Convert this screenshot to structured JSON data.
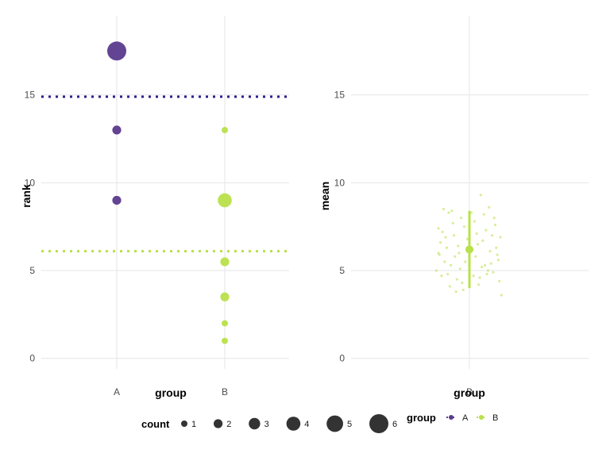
{
  "chart_data": [
    {
      "type": "scatter",
      "panel": "left",
      "xlabel": "group",
      "ylabel": "rank",
      "categories": [
        "A",
        "B"
      ],
      "ylim": [
        -0.6,
        19.5
      ],
      "yticks": [
        0,
        5,
        10,
        15
      ],
      "grid": true,
      "series": [
        {
          "name": "A",
          "color": "#5b3a8c",
          "points": [
            {
              "x": "A",
              "y": 17.5,
              "count": 6
            },
            {
              "x": "A",
              "y": 13,
              "count": 2
            },
            {
              "x": "A",
              "y": 9,
              "count": 2
            }
          ],
          "mean_line": 14.9
        },
        {
          "name": "B",
          "color": "#b8e04a",
          "points": [
            {
              "x": "B",
              "y": 13,
              "count": 1
            },
            {
              "x": "B",
              "y": 9,
              "count": 4
            },
            {
              "x": "B",
              "y": 5.5,
              "count": 2
            },
            {
              "x": "B",
              "y": 3.5,
              "count": 2
            },
            {
              "x": "B",
              "y": 2,
              "count": 1
            },
            {
              "x": "B",
              "y": 1,
              "count": 1
            }
          ],
          "mean_line": 6.1
        }
      ]
    },
    {
      "type": "scatter",
      "panel": "right",
      "xlabel": "group",
      "ylabel": "mean",
      "categories": [
        "B"
      ],
      "ylim": [
        -0.6,
        19.5
      ],
      "yticks": [
        0,
        5,
        10,
        15
      ],
      "grid": true,
      "series": [
        {
          "name": "B",
          "color": "#b8e04a",
          "mean": 6.2,
          "interval": [
            4.0,
            8.4
          ],
          "jitter_points": [
            [
              -0.3,
              7.4
            ],
            [
              -0.25,
              8.5
            ],
            [
              -0.2,
              8.3
            ],
            [
              -0.28,
              6.6
            ],
            [
              -0.22,
              6.3
            ],
            [
              -0.15,
              7.0
            ],
            [
              -0.32,
              5.0
            ],
            [
              -0.27,
              4.7
            ],
            [
              -0.18,
              5.3
            ],
            [
              -0.12,
              4.5
            ],
            [
              -0.1,
              6.0
            ],
            [
              -0.05,
              7.5
            ],
            [
              -0.08,
              8.0
            ],
            [
              -0.14,
              5.8
            ],
            [
              -0.24,
              5.5
            ],
            [
              -0.19,
              4.1
            ],
            [
              -0.06,
              3.9
            ],
            [
              -0.02,
              6.8
            ],
            [
              -0.3,
              6.0
            ],
            [
              -0.16,
              7.7
            ],
            [
              -0.09,
              5.1
            ],
            [
              -0.26,
              7.2
            ],
            [
              -0.21,
              4.8
            ],
            [
              -0.11,
              6.4
            ],
            [
              -0.04,
              5.5
            ],
            [
              -0.13,
              3.8
            ],
            [
              -0.29,
              5.9
            ],
            [
              -0.23,
              6.9
            ],
            [
              -0.07,
              4.3
            ],
            [
              -0.17,
              8.4
            ],
            [
              0.05,
              7.8
            ],
            [
              0.08,
              6.5
            ],
            [
              0.12,
              5.2
            ],
            [
              0.16,
              7.3
            ],
            [
              0.2,
              6.1
            ],
            [
              0.24,
              8.0
            ],
            [
              0.28,
              5.6
            ],
            [
              0.3,
              6.9
            ],
            [
              0.1,
              4.6
            ],
            [
              0.14,
              8.2
            ],
            [
              0.18,
              5.0
            ],
            [
              0.22,
              7.0
            ],
            [
              0.26,
              6.3
            ],
            [
              0.06,
              5.8
            ],
            [
              0.09,
              4.2
            ],
            [
              0.13,
              6.7
            ],
            [
              0.17,
              4.8
            ],
            [
              0.21,
              5.4
            ],
            [
              0.25,
              7.6
            ],
            [
              0.29,
              4.4
            ],
            [
              0.11,
              9.3
            ],
            [
              0.19,
              8.6
            ],
            [
              0.27,
              5.9
            ],
            [
              0.07,
              7.1
            ],
            [
              0.15,
              5.3
            ],
            [
              0.23,
              4.9
            ],
            [
              0.31,
              3.6
            ],
            [
              0.03,
              6.2
            ],
            [
              0.04,
              4.7
            ],
            [
              0.02,
              8.3
            ]
          ]
        }
      ]
    }
  ],
  "legend": {
    "count_title": "count",
    "count_items": [
      {
        "label": "1",
        "count": 1
      },
      {
        "label": "2",
        "count": 2
      },
      {
        "label": "3",
        "count": 3
      },
      {
        "label": "4",
        "count": 4
      },
      {
        "label": "5",
        "count": 5
      },
      {
        "label": "6",
        "count": 6
      }
    ],
    "group_title": "group",
    "group_items": [
      {
        "label": "A",
        "color": "#5b3a8c"
      },
      {
        "label": "B",
        "color": "#b8e04a"
      }
    ]
  },
  "colors": {
    "dark_point": "#333333",
    "grid": "#e6e6e6",
    "mean_line_A": "#2b1f8f"
  }
}
